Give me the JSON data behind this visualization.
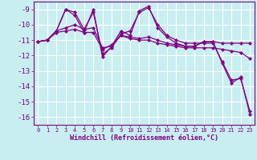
{
  "xlabel": "Windchill (Refroidissement éolien,°C)",
  "bg_color": "#c8eef0",
  "line_color": "#800080",
  "grid_color": "#ffffff",
  "ylim": [
    -16.5,
    -8.5
  ],
  "xlim": [
    -0.5,
    23.5
  ],
  "yticks": [
    -9,
    -10,
    -11,
    -12,
    -13,
    -14,
    -15,
    -16
  ],
  "xticks": [
    0,
    1,
    2,
    3,
    4,
    5,
    6,
    7,
    8,
    9,
    10,
    11,
    12,
    13,
    14,
    15,
    16,
    17,
    18,
    19,
    20,
    21,
    22,
    23
  ],
  "lines": [
    [
      0,
      -11.1,
      1,
      -11.0,
      2,
      -10.4,
      3,
      -9.0,
      4,
      -9.4,
      5,
      -10.5,
      6,
      -9.0,
      7,
      -12.1,
      8,
      -11.4,
      9,
      -10.4,
      10,
      -10.7,
      11,
      -9.1,
      12,
      -8.8,
      13,
      -10.2,
      14,
      -10.8,
      15,
      -11.2,
      16,
      -11.4,
      17,
      -11.4,
      18,
      -11.1,
      19,
      -11.1,
      20,
      -12.5,
      21,
      -13.8,
      22,
      -13.4,
      23,
      -15.8
    ],
    [
      0,
      -11.1,
      1,
      -11.0,
      2,
      -10.5,
      3,
      -10.4,
      4,
      -10.3,
      5,
      -10.5,
      6,
      -10.5,
      7,
      -11.6,
      8,
      -11.3,
      9,
      -10.7,
      10,
      -10.8,
      11,
      -10.9,
      12,
      -10.8,
      13,
      -11.0,
      14,
      -11.2,
      15,
      -11.3,
      16,
      -11.4,
      17,
      -11.4,
      18,
      -11.1,
      19,
      -11.1,
      20,
      -11.2,
      21,
      -11.2,
      22,
      -11.2,
      23,
      -11.2
    ],
    [
      0,
      -11.1,
      1,
      -11.0,
      2,
      -10.4,
      3,
      -9.0,
      4,
      -9.2,
      5,
      -10.3,
      6,
      -9.2,
      7,
      -11.9,
      8,
      -11.5,
      9,
      -10.6,
      10,
      -10.4,
      11,
      -9.2,
      12,
      -8.9,
      13,
      -10.0,
      14,
      -10.7,
      15,
      -11.0,
      16,
      -11.2,
      17,
      -11.2,
      18,
      -11.2,
      19,
      -11.2,
      20,
      -12.4,
      21,
      -13.6,
      22,
      -13.5,
      23,
      -15.6
    ],
    [
      0,
      -11.1,
      1,
      -11.0,
      2,
      -10.4,
      3,
      -10.2,
      4,
      -10.0,
      5,
      -10.3,
      6,
      -10.2,
      7,
      -11.5,
      8,
      -11.4,
      9,
      -10.7,
      10,
      -10.9,
      11,
      -11.0,
      12,
      -11.0,
      13,
      -11.2,
      14,
      -11.3,
      15,
      -11.4,
      16,
      -11.5,
      17,
      -11.5,
      18,
      -11.5,
      19,
      -11.5,
      20,
      -11.6,
      21,
      -11.7,
      22,
      -11.8,
      23,
      -12.2
    ]
  ],
  "xlabel_fontsize": 6.0,
  "ylabel_fontsize": 6.5,
  "xtick_fontsize": 5.0,
  "ytick_fontsize": 6.5,
  "linewidth": 0.9,
  "markersize": 2.2
}
